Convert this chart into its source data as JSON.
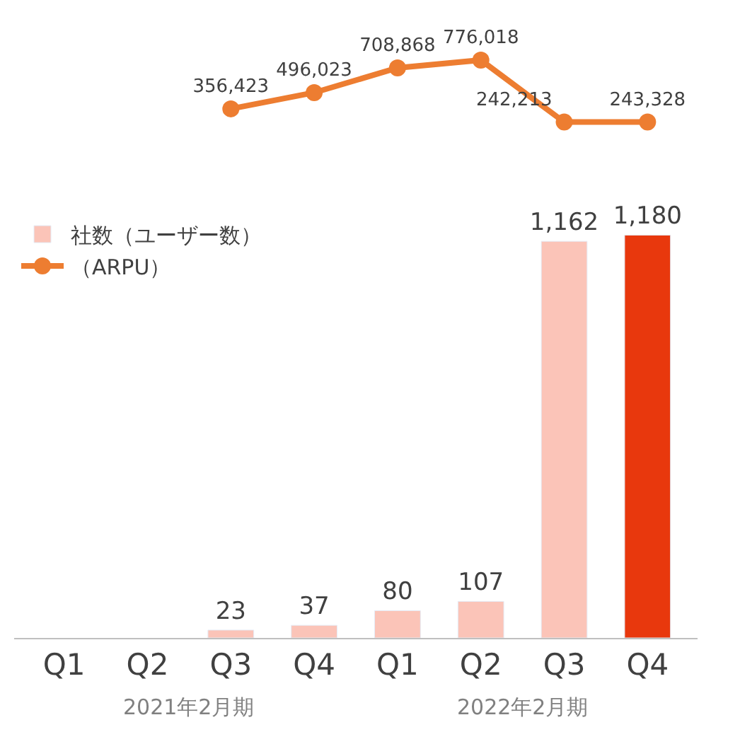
{
  "chart_data": [
    {
      "type": "line",
      "categories": [
        null,
        null,
        null,
        null,
        null,
        null,
        null,
        null
      ],
      "series": [
        {
          "name": "（ARPU）",
          "color": "#ed7d31",
          "values": [
            null,
            null,
            356423,
            496023,
            708868,
            776018,
            242213,
            243328
          ],
          "value_labels": [
            null,
            null,
            "356,423",
            "496,023",
            "708,868",
            "776,018",
            "242,213",
            "243,328"
          ]
        }
      ],
      "marker": "circle",
      "legend": "left"
    },
    {
      "type": "bar",
      "categories": [
        "Q1",
        "Q2",
        "Q3",
        "Q4",
        "Q1",
        "Q2",
        "Q3",
        "Q4"
      ],
      "series": [
        {
          "name": "社数（ユーザー数）",
          "values": [
            null,
            null,
            23,
            37,
            80,
            107,
            1162,
            1180
          ],
          "value_labels": [
            null,
            null,
            "23",
            "37",
            "80",
            "107",
            "1,162",
            "1,180"
          ],
          "colors": [
            "#fbc4b8",
            "#fbc4b8",
            "#fbc4b8",
            "#fbc4b8",
            "#fbc4b8",
            "#fbc4b8",
            "#fbc4b8",
            "#e8380d"
          ]
        }
      ],
      "legend": "left",
      "annotations": [
        "2021年2月期",
        "2022年2月期"
      ]
    }
  ]
}
